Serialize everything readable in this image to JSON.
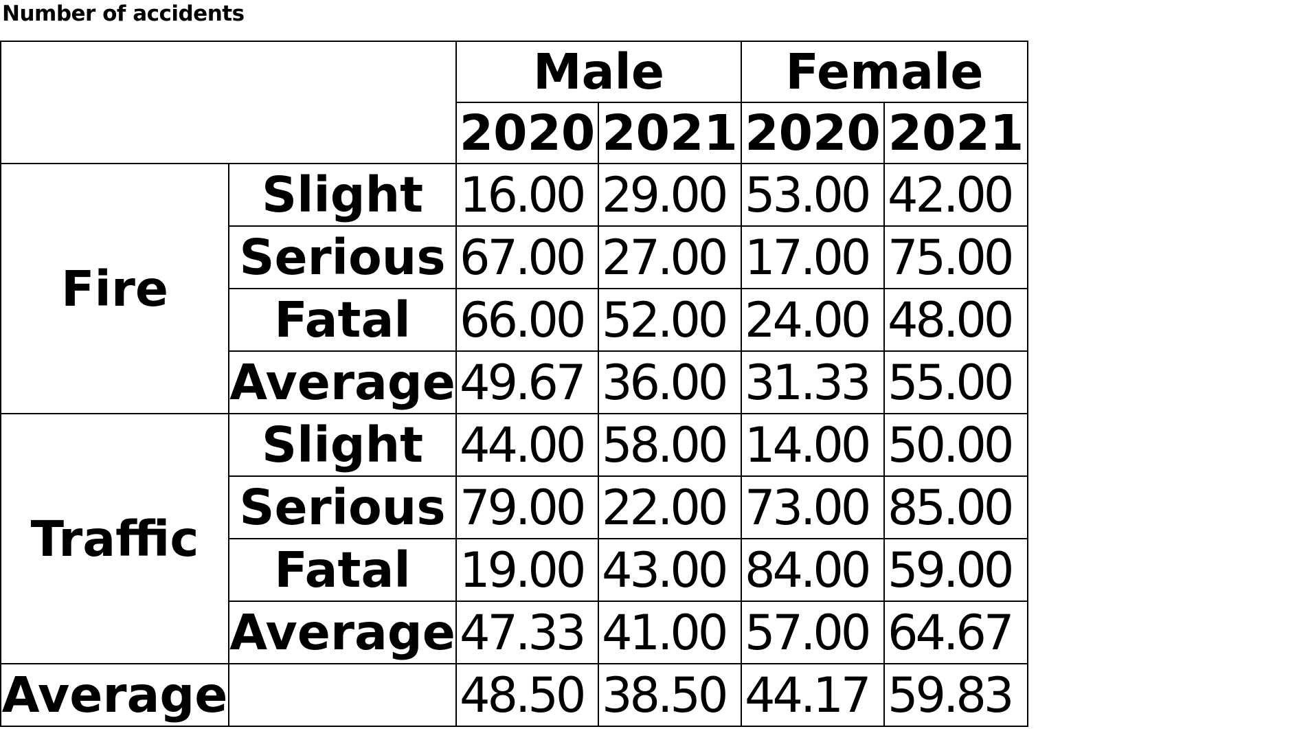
{
  "title": "Number of accidents",
  "chart_data": {
    "type": "table",
    "title": "Number of accidents",
    "column_groups": [
      {
        "label": "Male",
        "years": [
          "2020",
          "2021"
        ]
      },
      {
        "label": "Female",
        "years": [
          "2020",
          "2021"
        ]
      }
    ],
    "columns": [
      "Male 2020",
      "Male 2021",
      "Female 2020",
      "Female 2021"
    ],
    "row_groups": [
      {
        "group": "Fire",
        "rows": [
          {
            "label": "Slight",
            "values": [
              "16.00",
              "29.00",
              "53.00",
              "42.00"
            ]
          },
          {
            "label": "Serious",
            "values": [
              "67.00",
              "27.00",
              "17.00",
              "75.00"
            ]
          },
          {
            "label": "Fatal",
            "values": [
              "66.00",
              "52.00",
              "24.00",
              "48.00"
            ]
          },
          {
            "label": "Average",
            "values": [
              "49.67",
              "36.00",
              "31.33",
              "55.00"
            ]
          }
        ]
      },
      {
        "group": "Traffic",
        "rows": [
          {
            "label": "Slight",
            "values": [
              "44.00",
              "58.00",
              "14.00",
              "50.00"
            ]
          },
          {
            "label": "Serious",
            "values": [
              "79.00",
              "22.00",
              "73.00",
              "85.00"
            ]
          },
          {
            "label": "Fatal",
            "values": [
              "19.00",
              "43.00",
              "84.00",
              "59.00"
            ]
          },
          {
            "label": "Average",
            "values": [
              "47.33",
              "41.00",
              "57.00",
              "64.67"
            ]
          }
        ]
      },
      {
        "group": "Average",
        "rows": [
          {
            "label": "",
            "values": [
              "48.50",
              "38.50",
              "44.17",
              "59.83"
            ]
          }
        ]
      }
    ],
    "layout": {
      "grid": true,
      "background": "#ffffff",
      "border_color": "#000000",
      "text_color": "#000000"
    }
  }
}
